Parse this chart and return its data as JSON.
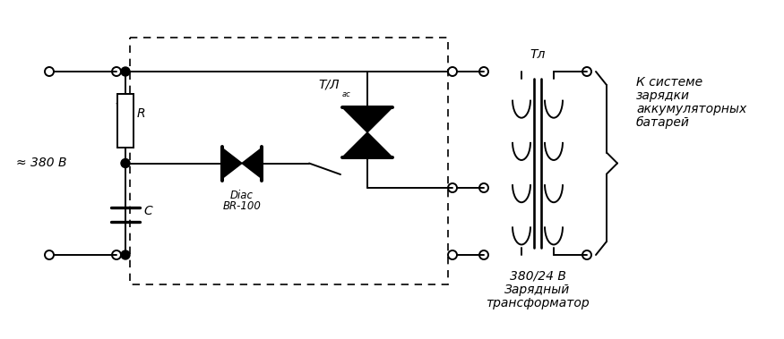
{
  "bg_color": "#ffffff",
  "line_color": "#000000",
  "lw": 1.4,
  "fig_w": 8.75,
  "fig_h": 3.79,
  "voltage": "≈ 380 В",
  "R_label": "R",
  "C_label": "C",
  "diac_label1": "Diac",
  "diac_label2": "BR-100",
  "triac_label_main": "T/Л",
  "triac_label_sub": "ас",
  "transformer_label": "Тл",
  "voltage_ratio": "380/24 В",
  "charger_line1": "Зарядный",
  "charger_line2": "трансформатор",
  "system_line1": "К системе",
  "system_line2": "зарядки",
  "system_line3": "аккумуляторных",
  "system_line4": "батарей"
}
